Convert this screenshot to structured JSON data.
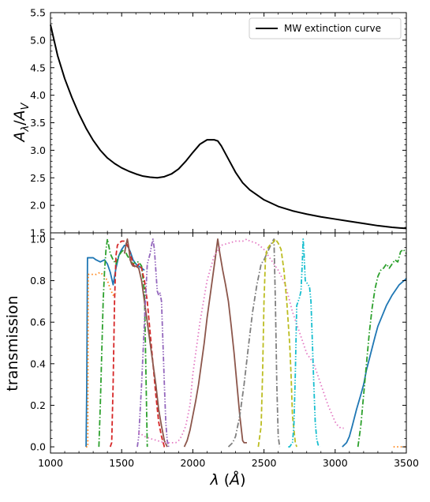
{
  "chart_data": [
    {
      "type": "line",
      "panel": "top",
      "xlabel": "",
      "ylabel": "A_λ/A_V",
      "xlim": [
        1000,
        3500
      ],
      "ylim": [
        1.5,
        5.5
      ],
      "yticks": [
        1.5,
        2.0,
        2.5,
        3.0,
        3.5,
        4.0,
        4.5,
        5.0,
        5.5
      ],
      "ytick_labels": [
        "1.5",
        "2.0",
        "2.5",
        "3.0",
        "3.5",
        "4.0",
        "4.5",
        "5.0",
        "5.5"
      ],
      "minor_ticks": true,
      "legend": {
        "position": "top-right",
        "entries": [
          "MW extinction curve"
        ]
      },
      "series": [
        {
          "name": "MW extinction curve",
          "color": "#000000",
          "style": "solid",
          "x": [
            1000,
            1050,
            1100,
            1150,
            1200,
            1250,
            1300,
            1350,
            1400,
            1450,
            1500,
            1550,
            1600,
            1650,
            1700,
            1750,
            1800,
            1850,
            1900,
            1950,
            2000,
            2050,
            2100,
            2150,
            2175,
            2200,
            2250,
            2300,
            2350,
            2400,
            2500,
            2600,
            2700,
            2800,
            2900,
            3000,
            3100,
            3200,
            3300,
            3400,
            3500
          ],
          "y": [
            5.28,
            4.72,
            4.3,
            3.96,
            3.66,
            3.4,
            3.18,
            3.0,
            2.86,
            2.76,
            2.68,
            2.62,
            2.57,
            2.53,
            2.51,
            2.5,
            2.52,
            2.57,
            2.66,
            2.8,
            2.96,
            3.11,
            3.19,
            3.19,
            3.17,
            3.08,
            2.84,
            2.6,
            2.41,
            2.28,
            2.1,
            1.98,
            1.9,
            1.84,
            1.79,
            1.75,
            1.71,
            1.67,
            1.63,
            1.6,
            1.58
          ]
        }
      ]
    },
    {
      "type": "line",
      "panel": "bottom",
      "xlabel": "λ (Å)",
      "ylabel": "transmission",
      "xlim": [
        1000,
        3500
      ],
      "ylim": [
        -0.03,
        1.03
      ],
      "xticks": [
        1000,
        1500,
        2000,
        2500,
        3000,
        3500
      ],
      "xtick_labels": [
        "1000",
        "1500",
        "2000",
        "2500",
        "3000",
        "3500"
      ],
      "yticks": [
        0.0,
        0.2,
        0.4,
        0.6,
        0.8,
        1.0
      ],
      "ytick_labels": [
        "0.0",
        "0.2",
        "0.4",
        "0.6",
        "0.8",
        "1.0"
      ],
      "minor_ticks": true,
      "series": [
        {
          "color": "#1f77b4",
          "style": "solid",
          "x": [
            1250,
            1255,
            1260,
            1280,
            1300,
            1320,
            1350,
            1380,
            1400,
            1420,
            1440,
            1460,
            1480,
            1500,
            1520,
            1540,
            1560,
            1580,
            1600,
            1620,
            1640,
            1660
          ],
          "y": [
            0.0,
            0.3,
            0.91,
            0.91,
            0.91,
            0.9,
            0.89,
            0.9,
            0.88,
            0.84,
            0.78,
            0.86,
            0.92,
            0.95,
            0.97,
            0.97,
            0.94,
            0.9,
            0.88,
            0.87,
            0.86,
            0.85
          ]
        },
        {
          "color": "#1f77b4",
          "style": "solid",
          "x": [
            3050,
            3080,
            3100,
            3120,
            3150,
            3180,
            3200,
            3220,
            3250,
            3280,
            3300,
            3330,
            3360,
            3400,
            3450,
            3500
          ],
          "y": [
            0.0,
            0.02,
            0.05,
            0.1,
            0.18,
            0.25,
            0.3,
            0.37,
            0.45,
            0.53,
            0.58,
            0.63,
            0.68,
            0.73,
            0.78,
            0.81
          ]
        },
        {
          "color": "#ff7f0e",
          "style": "dotted",
          "x": [
            1250,
            1262,
            1265,
            1280,
            1300,
            1320,
            1350,
            1380,
            1400,
            1420,
            1440,
            1460
          ],
          "y": [
            0.0,
            0.0,
            0.83,
            0.83,
            0.83,
            0.83,
            0.84,
            0.82,
            0.8,
            0.76,
            0.73,
            0.74
          ]
        },
        {
          "color": "#ff7f0e",
          "style": "dotted",
          "x": [
            3410,
            3430,
            3450,
            3470,
            3490,
            3500
          ],
          "y": [
            0.0,
            0.0,
            0.0,
            0.0,
            0.0,
            0.0
          ]
        },
        {
          "color": "#2ca02c",
          "style": "dashdot",
          "x": [
            1340,
            1350,
            1360,
            1370,
            1380,
            1390,
            1400,
            1420,
            1440,
            1460,
            1480,
            1500,
            1520,
            1540,
            1560,
            1580,
            1600,
            1620,
            1640,
            1660,
            1680
          ],
          "y": [
            0.0,
            0.2,
            0.45,
            0.7,
            0.85,
            0.95,
            1.0,
            0.93,
            0.9,
            0.88,
            0.92,
            0.94,
            0.95,
            0.92,
            0.9,
            0.88,
            0.89,
            0.89,
            0.87,
            0.75,
            0.0
          ]
        },
        {
          "color": "#2ca02c",
          "style": "dashdot",
          "x": [
            3160,
            3180,
            3200,
            3220,
            3240,
            3260,
            3280,
            3300,
            3320,
            3340,
            3360,
            3380,
            3400,
            3420,
            3440,
            3460,
            3480,
            3500
          ],
          "y": [
            0.0,
            0.1,
            0.25,
            0.4,
            0.55,
            0.67,
            0.76,
            0.82,
            0.85,
            0.86,
            0.88,
            0.86,
            0.88,
            0.9,
            0.89,
            0.94,
            0.95,
            0.93
          ]
        },
        {
          "color": "#d62728",
          "style": "dashed",
          "x": [
            1420,
            1430,
            1440,
            1450,
            1460,
            1470,
            1480,
            1500,
            1520,
            1540,
            1560,
            1580,
            1600,
            1620,
            1640,
            1660,
            1680,
            1700,
            1720,
            1740,
            1760,
            1780,
            1800,
            1810
          ],
          "y": [
            0.0,
            0.02,
            0.3,
            0.7,
            0.92,
            0.97,
            0.98,
            0.99,
            0.99,
            0.97,
            0.93,
            0.88,
            0.86,
            0.88,
            0.86,
            0.8,
            0.7,
            0.55,
            0.4,
            0.25,
            0.12,
            0.05,
            0.0,
            0.0
          ]
        },
        {
          "color": "#8c564b",
          "style": "solid",
          "x": [
            1520,
            1530,
            1540,
            1550,
            1560,
            1570,
            1580,
            1600,
            1620,
            1640,
            1660,
            1680,
            1700,
            1720,
            1740,
            1760,
            1780,
            1800,
            1820
          ],
          "y": [
            0.93,
            0.97,
            1.0,
            0.96,
            0.9,
            0.88,
            0.87,
            0.87,
            0.86,
            0.8,
            0.7,
            0.6,
            0.5,
            0.4,
            0.3,
            0.18,
            0.1,
            0.03,
            0.0
          ]
        },
        {
          "color": "#8c564b",
          "style": "solid",
          "x": [
            1940,
            1960,
            1980,
            2000,
            2020,
            2040,
            2060,
            2080,
            2100,
            2120,
            2140,
            2160,
            2175,
            2190,
            2210,
            2230,
            2250,
            2270,
            2290,
            2310,
            2330,
            2350,
            2360,
            2380
          ],
          "y": [
            0.0,
            0.03,
            0.08,
            0.15,
            0.22,
            0.3,
            0.4,
            0.5,
            0.62,
            0.72,
            0.82,
            0.92,
            1.0,
            0.93,
            0.85,
            0.78,
            0.7,
            0.58,
            0.45,
            0.3,
            0.15,
            0.03,
            0.02,
            0.02
          ]
        },
        {
          "color": "#9467bd",
          "style": "dashdotdot",
          "x": [
            1610,
            1620,
            1640,
            1660,
            1680,
            1700,
            1710,
            1720,
            1730,
            1740,
            1750,
            1760,
            1770,
            1780,
            1790,
            1800,
            1810,
            1820,
            1830
          ],
          "y": [
            0.0,
            0.05,
            0.3,
            0.6,
            0.88,
            0.93,
            0.97,
            1.0,
            0.95,
            0.85,
            0.75,
            0.73,
            0.74,
            0.7,
            0.5,
            0.3,
            0.12,
            0.03,
            0.0
          ]
        },
        {
          "color": "#e377c2",
          "style": "dotted",
          "x": [
            1620,
            1640,
            1660,
            1700,
            1750,
            1800,
            1850,
            1880,
            1900,
            1920,
            1950,
            1980,
            2000,
            2050,
            2100,
            2150,
            2200,
            2250,
            2300,
            2350,
            2380,
            2400,
            2450,
            2500,
            2550,
            2600,
            2650,
            2700,
            2750,
            2800,
            2850,
            2900,
            2950,
            3000,
            3020,
            3040,
            3060
          ],
          "y": [
            0.07,
            0.06,
            0.05,
            0.04,
            0.03,
            0.02,
            0.02,
            0.02,
            0.03,
            0.05,
            0.1,
            0.2,
            0.35,
            0.6,
            0.8,
            0.92,
            0.97,
            0.98,
            0.99,
            0.99,
            1.0,
            0.99,
            0.98,
            0.95,
            0.9,
            0.85,
            0.78,
            0.65,
            0.55,
            0.45,
            0.4,
            0.3,
            0.2,
            0.12,
            0.1,
            0.09,
            0.09
          ]
        },
        {
          "color": "#7f7f7f",
          "style": "dashdot",
          "x": [
            2250,
            2280,
            2300,
            2330,
            2360,
            2390,
            2420,
            2450,
            2480,
            2500,
            2520,
            2540,
            2560,
            2570,
            2580,
            2590,
            2600,
            2610
          ],
          "y": [
            0.0,
            0.02,
            0.05,
            0.15,
            0.3,
            0.48,
            0.65,
            0.78,
            0.88,
            0.9,
            0.93,
            0.96,
            0.99,
            1.0,
            0.7,
            0.3,
            0.05,
            0.0
          ]
        },
        {
          "color": "#bcbd22",
          "style": "dashed",
          "x": [
            2460,
            2480,
            2490,
            2500,
            2510,
            2520,
            2540,
            2560,
            2580,
            2600,
            2620,
            2640,
            2660,
            2680,
            2690,
            2700,
            2720,
            2730
          ],
          "y": [
            0.0,
            0.1,
            0.35,
            0.7,
            0.9,
            0.95,
            0.97,
            0.98,
            1.0,
            0.98,
            0.95,
            0.85,
            0.7,
            0.5,
            0.35,
            0.15,
            0.02,
            0.0
          ]
        },
        {
          "color": "#17becf",
          "style": "dashdotdot",
          "x": [
            2670,
            2680,
            2700,
            2710,
            2720,
            2730,
            2740,
            2750,
            2760,
            2770,
            2775,
            2780,
            2790,
            2800,
            2810,
            2820,
            2830,
            2840,
            2850,
            2860,
            2870,
            2880,
            2890
          ],
          "y": [
            0.0,
            0.0,
            0.02,
            0.1,
            0.35,
            0.68,
            0.7,
            0.72,
            0.75,
            0.9,
            1.0,
            0.95,
            0.8,
            0.79,
            0.78,
            0.77,
            0.7,
            0.5,
            0.3,
            0.12,
            0.04,
            0.01,
            0.0
          ]
        }
      ]
    }
  ]
}
